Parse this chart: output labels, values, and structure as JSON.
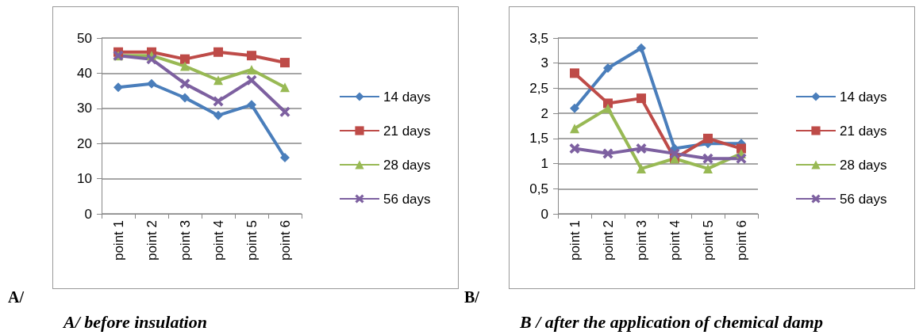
{
  "chart_data": [
    {
      "type": "line",
      "categories": [
        "point 1",
        "point 2",
        "point 3",
        "point 4",
        "point 5",
        "point 6"
      ],
      "ylim": [
        0,
        50
      ],
      "yticks": [
        0,
        10,
        20,
        30,
        40,
        50
      ],
      "grid": "y",
      "legend": "right",
      "annotations": [
        "A/",
        "A/ before insulation"
      ],
      "series": [
        {
          "name": "14 days",
          "color": "#4a7ebb",
          "marker": "diamond",
          "values": [
            36,
            37,
            33,
            28,
            31,
            16
          ]
        },
        {
          "name": "21 days",
          "color": "#be4b48",
          "marker": "square",
          "values": [
            46,
            46,
            44,
            46,
            45,
            43
          ]
        },
        {
          "name": "28 days",
          "color": "#98b954",
          "marker": "triangle",
          "values": [
            45,
            45,
            42,
            38,
            41,
            36
          ]
        },
        {
          "name": "56 days",
          "color": "#7d60a0",
          "marker": "cross",
          "values": [
            45,
            44,
            37,
            32,
            38,
            29
          ]
        }
      ]
    },
    {
      "type": "line",
      "categories": [
        "point 1",
        "point 2",
        "point 3",
        "point 4",
        "point 5",
        "point 6"
      ],
      "ylim": [
        0,
        3.5
      ],
      "yticks": [
        0,
        {
          "value": 0.5,
          "label": "0,5"
        },
        1,
        {
          "value": 1.5,
          "label": "1,5"
        },
        2,
        {
          "value": 2.5,
          "label": "2,5"
        },
        3,
        {
          "value": 3.5,
          "label": "3,5"
        }
      ],
      "grid": "y",
      "legend": "right",
      "annotations": [
        "B/",
        "B / after the application of chemical damp"
      ],
      "series": [
        {
          "name": "14 days",
          "color": "#4a7ebb",
          "marker": "diamond",
          "values": [
            2.1,
            2.9,
            3.3,
            1.3,
            1.4,
            1.4
          ]
        },
        {
          "name": "21 days",
          "color": "#be4b48",
          "marker": "square",
          "values": [
            2.8,
            2.2,
            2.3,
            1.1,
            1.5,
            1.3
          ]
        },
        {
          "name": "28 days",
          "color": "#98b954",
          "marker": "triangle",
          "values": [
            1.7,
            2.1,
            0.9,
            1.1,
            0.9,
            1.2
          ]
        },
        {
          "name": "56 days",
          "color": "#7d60a0",
          "marker": "cross",
          "values": [
            1.3,
            1.2,
            1.3,
            1.2,
            1.1,
            1.1
          ]
        }
      ]
    }
  ]
}
